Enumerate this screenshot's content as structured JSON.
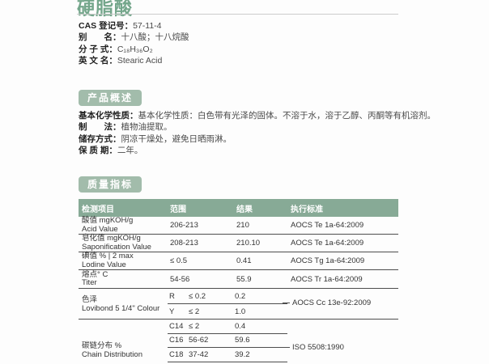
{
  "page": {
    "title": "硬脂酸"
  },
  "basic_info": {
    "items": [
      {
        "label": "CAS 登记号：",
        "value": "57-11-4"
      },
      {
        "label": "别　　名：",
        "value": "十八酸；十八烷酸"
      },
      {
        "label": "分 子 式：",
        "value": "C₁₈H₃₆O₂"
      },
      {
        "label": "英 文 名：",
        "value": "Stearic Acid"
      }
    ]
  },
  "overview": {
    "badge": "产品概述",
    "items": [
      {
        "label": "基本化学性质：",
        "value": "基本化学性质：白色带有光泽的固体。不溶于水，溶于乙醇、丙酮等有机溶剂。"
      },
      {
        "label": "制　　法：",
        "value": "植物油提取。"
      },
      {
        "label": "储存方式：",
        "value": "阴凉干燥处，避免日晒雨淋。"
      },
      {
        "label": "保 质 期：",
        "value": "二年。"
      }
    ]
  },
  "quality": {
    "badge": "质量指标",
    "headers": {
      "item": "检测项目",
      "range": "范围",
      "result": "结果",
      "standard": "执行标准"
    },
    "rows": [
      {
        "name_zh": "酸值 mgKOH/g",
        "name_en": "Acid Value",
        "range": "206-213",
        "result": "210",
        "standard": "AOCS Te 1a-64:2009"
      },
      {
        "name_zh": "皂化值 mgKOH/g",
        "name_en": "Saponification Value",
        "range": "208-213",
        "result": "210.10",
        "standard": "AOCS Te 1a-64:2009"
      },
      {
        "name_zh": "碘值 % | 2 max",
        "name_en": "Lodine Value",
        "range": "≤ 0.5",
        "result": "0.41",
        "standard": "AOCS Tg 1a-64:2009"
      },
      {
        "name_zh": "熔点° C",
        "name_en": "Titer",
        "range": "54-56",
        "result": "55.9",
        "standard": "AOCS Tr 1a-64:2009"
      }
    ],
    "groups": [
      {
        "name_zh": "色泽",
        "name_en": "Lovibond 5 1/4\" Colour",
        "standard": "AOCS Cc 13e-92:2009",
        "subrows": [
          {
            "key": "R",
            "range": "≤ 0.2",
            "result": "0.2"
          },
          {
            "key": "Y",
            "range": "≤ 2",
            "result": "1.0"
          }
        ]
      },
      {
        "name_zh": "碳链分布 %",
        "name_en": "Chain Distribution",
        "standard": "ISO 5508:1990",
        "subrows": [
          {
            "key": "C14",
            "range": "≤ 2",
            "result": "0.4"
          },
          {
            "key": "C16",
            "range": "56-62",
            "result": "59.6"
          },
          {
            "key": "C18",
            "range": "37-42",
            "result": "39.2"
          }
        ]
      }
    ]
  }
}
